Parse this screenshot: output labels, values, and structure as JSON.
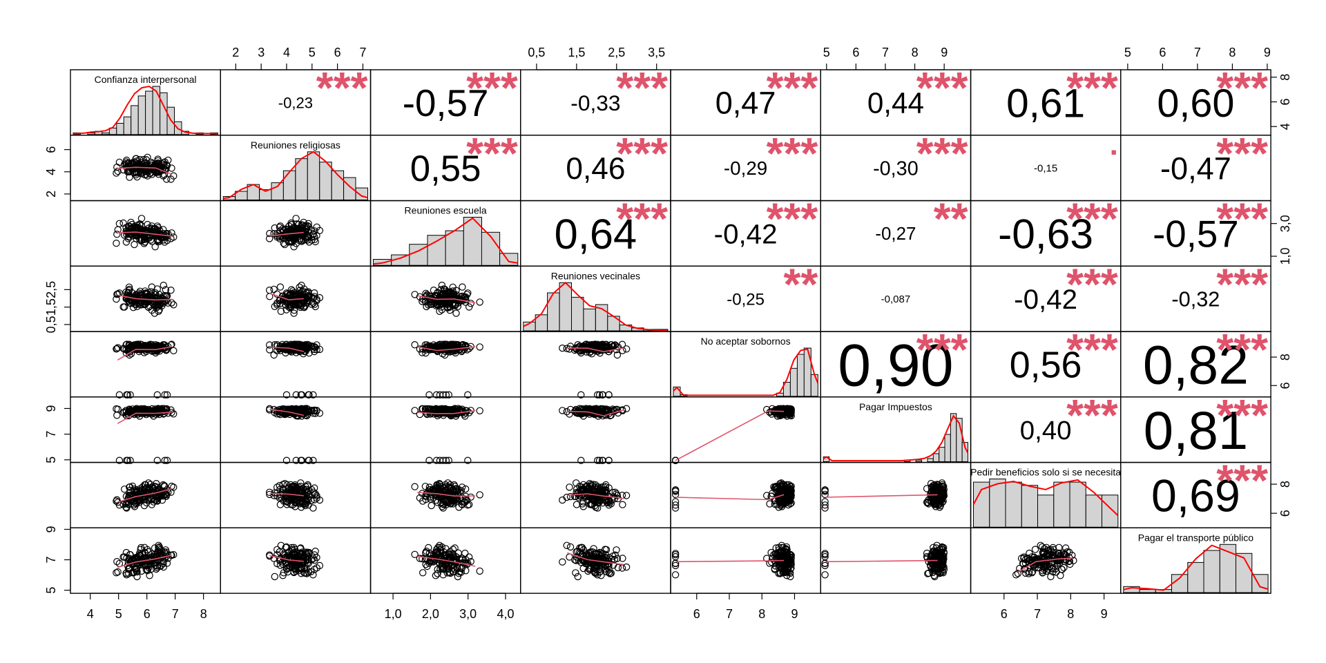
{
  "chart_data": {
    "type": "scatter-matrix",
    "variables": [
      "Confianza interpersonal",
      "Reuniones religiosas",
      "Reuniones escuela",
      "Reuniones vecinales",
      "No aceptar sobornos",
      "Pagar Impuestos",
      "Pedir beneficios solo si se necesita",
      "Pagar el transporte público"
    ],
    "ranges": [
      [
        3.3,
        8.6
      ],
      [
        1.4,
        7.3
      ],
      [
        0.4,
        4.4
      ],
      [
        0.1,
        3.85
      ],
      [
        5.2,
        9.8
      ],
      [
        4.8,
        9.9
      ],
      [
        5.0,
        9.5
      ],
      [
        4.8,
        9.1
      ]
    ],
    "axes": {
      "top": [
        {
          "col": 1,
          "ticks": [
            "2",
            "3",
            "4",
            "5",
            "6",
            "7"
          ]
        },
        {
          "col": 3,
          "ticks": [
            "0,5",
            "1,5",
            "2,5",
            "3,5"
          ]
        },
        {
          "col": 5,
          "ticks": [
            "5",
            "6",
            "7",
            "8",
            "9"
          ]
        },
        {
          "col": 7,
          "ticks": [
            "5",
            "6",
            "7",
            "8",
            "9"
          ]
        }
      ],
      "bottom": [
        {
          "col": 0,
          "ticks": [
            "4",
            "5",
            "6",
            "7",
            "8"
          ]
        },
        {
          "col": 2,
          "ticks": [
            "1,0",
            "2,0",
            "3,0",
            "4,0"
          ]
        },
        {
          "col": 4,
          "ticks": [
            "6",
            "7",
            "8",
            "9"
          ]
        },
        {
          "col": 6,
          "ticks": [
            "6",
            "7",
            "8",
            "9"
          ]
        }
      ],
      "left": [
        {
          "row": 1,
          "ticks": [
            "2",
            "4",
            "6"
          ]
        },
        {
          "row": 3,
          "ticks": [
            "0,5",
            "1,5",
            "2,5"
          ]
        },
        {
          "row": 5,
          "ticks": [
            "5",
            "7",
            "9"
          ]
        },
        {
          "row": 7,
          "ticks": [
            "5",
            "7",
            "9"
          ]
        }
      ],
      "right": [
        {
          "row": 0,
          "ticks": [
            "4",
            "6",
            "8"
          ]
        },
        {
          "row": 2,
          "ticks": [
            "1,0",
            "3,0"
          ]
        },
        {
          "row": 4,
          "ticks": [
            "6",
            "8"
          ]
        },
        {
          "row": 6,
          "ticks": [
            "6",
            "8"
          ]
        }
      ]
    },
    "correlations": [
      {
        "row": 0,
        "col": 1,
        "r": "-0,23",
        "stars": "***"
      },
      {
        "row": 0,
        "col": 2,
        "r": "-0,57",
        "stars": "***"
      },
      {
        "row": 0,
        "col": 3,
        "r": "-0,33",
        "stars": "***"
      },
      {
        "row": 0,
        "col": 4,
        "r": "0,47",
        "stars": "***"
      },
      {
        "row": 0,
        "col": 5,
        "r": "0,44",
        "stars": "***"
      },
      {
        "row": 0,
        "col": 6,
        "r": "0,61",
        "stars": "***"
      },
      {
        "row": 0,
        "col": 7,
        "r": "0,60",
        "stars": "***"
      },
      {
        "row": 1,
        "col": 2,
        "r": "0,55",
        "stars": "***"
      },
      {
        "row": 1,
        "col": 3,
        "r": "0,46",
        "stars": "***"
      },
      {
        "row": 1,
        "col": 4,
        "r": "-0,29",
        "stars": "***"
      },
      {
        "row": 1,
        "col": 5,
        "r": "-0,30",
        "stars": "***"
      },
      {
        "row": 1,
        "col": 6,
        "r": "-0,15",
        "stars": "."
      },
      {
        "row": 1,
        "col": 7,
        "r": "-0,47",
        "stars": "***"
      },
      {
        "row": 2,
        "col": 3,
        "r": "0,64",
        "stars": "***"
      },
      {
        "row": 2,
        "col": 4,
        "r": "-0,42",
        "stars": "***"
      },
      {
        "row": 2,
        "col": 5,
        "r": "-0,27",
        "stars": "**"
      },
      {
        "row": 2,
        "col": 6,
        "r": "-0,63",
        "stars": "***"
      },
      {
        "row": 2,
        "col": 7,
        "r": "-0,57",
        "stars": "***"
      },
      {
        "row": 3,
        "col": 4,
        "r": "-0,25",
        "stars": "**"
      },
      {
        "row": 3,
        "col": 5,
        "r": "-0,087",
        "stars": ""
      },
      {
        "row": 3,
        "col": 6,
        "r": "-0,42",
        "stars": "***"
      },
      {
        "row": 3,
        "col": 7,
        "r": "-0,32",
        "stars": "***"
      },
      {
        "row": 4,
        "col": 5,
        "r": "0,90",
        "stars": "***"
      },
      {
        "row": 4,
        "col": 6,
        "r": "0,56",
        "stars": "***"
      },
      {
        "row": 4,
        "col": 7,
        "r": "0,82",
        "stars": "***"
      },
      {
        "row": 5,
        "col": 6,
        "r": "0,40",
        "stars": "***"
      },
      {
        "row": 5,
        "col": 7,
        "r": "0,81",
        "stars": "***"
      },
      {
        "row": 6,
        "col": 7,
        "r": "0,69",
        "stars": "***"
      }
    ],
    "histograms": [
      {
        "var": 0,
        "counts": [
          1,
          0,
          1,
          2,
          1,
          4,
          7,
          11,
          18,
          24,
          27,
          30,
          26,
          17,
          8,
          2,
          0,
          1,
          0,
          1
        ],
        "density": [
          0.02,
          0.03,
          0.05,
          0.06,
          0.08,
          0.15,
          0.35,
          0.62,
          0.85,
          0.97,
          1.0,
          0.9,
          0.6,
          0.3,
          0.12,
          0.05,
          0.03,
          0.02,
          0.02,
          0.02
        ]
      },
      {
        "var": 1,
        "counts": [
          2,
          5,
          9,
          6,
          10,
          17,
          24,
          28,
          22,
          17,
          13,
          7
        ],
        "density": [
          0.05,
          0.22,
          0.32,
          0.18,
          0.28,
          0.58,
          0.86,
          1.0,
          0.8,
          0.52,
          0.28,
          0.08
        ]
      },
      {
        "var": 2,
        "counts": [
          4,
          7,
          14,
          20,
          23,
          32,
          22,
          8
        ],
        "density": [
          0.05,
          0.15,
          0.3,
          0.5,
          0.72,
          0.98,
          0.6,
          0.08
        ]
      },
      {
        "var": 3,
        "counts": [
          6,
          11,
          26,
          33,
          23,
          15,
          18,
          10,
          4,
          2,
          1,
          1
        ],
        "density": [
          0.15,
          0.35,
          0.78,
          1.0,
          0.75,
          0.52,
          0.46,
          0.3,
          0.12,
          0.05,
          0.02,
          0.01
        ]
      },
      {
        "var": 4,
        "counts": [
          6,
          1,
          0,
          0,
          0,
          0,
          0,
          0,
          0,
          0,
          0,
          0,
          0,
          0,
          0,
          2,
          9,
          18,
          27,
          31,
          14
        ],
        "density": [
          0.18,
          0.02,
          0.02,
          0.02,
          0.02,
          0.02,
          0.02,
          0.02,
          0.02,
          0.02,
          0.02,
          0.02,
          0.02,
          0.02,
          0.02,
          0.08,
          0.35,
          0.75,
          0.95,
          0.98,
          0.45
        ]
      },
      {
        "var": 5,
        "counts": [
          3,
          0,
          0,
          0,
          0,
          0,
          0,
          0,
          0,
          0,
          0,
          0,
          0,
          0,
          1,
          0,
          1,
          0,
          2,
          5,
          9,
          17,
          30,
          27,
          12
        ],
        "density": [
          0.1,
          0.02,
          0.02,
          0.02,
          0.02,
          0.02,
          0.02,
          0.02,
          0.02,
          0.02,
          0.02,
          0.02,
          0.02,
          0.02,
          0.03,
          0.04,
          0.05,
          0.07,
          0.12,
          0.22,
          0.4,
          0.68,
          0.95,
          0.8,
          0.3
        ]
      },
      {
        "var": 6,
        "counts": [
          14,
          15,
          14,
          13,
          10,
          14,
          14,
          10,
          10
        ],
        "density": [
          0.78,
          0.9,
          0.95,
          0.85,
          0.78,
          0.92,
          0.98,
          0.72,
          0.4
        ]
      },
      {
        "var": 7,
        "counts": [
          2,
          1,
          1,
          6,
          10,
          14,
          16,
          13,
          6
        ],
        "density": [
          0.1,
          0.08,
          0.05,
          0.3,
          0.7,
          0.98,
          0.85,
          0.72,
          0.12
        ]
      }
    ]
  }
}
